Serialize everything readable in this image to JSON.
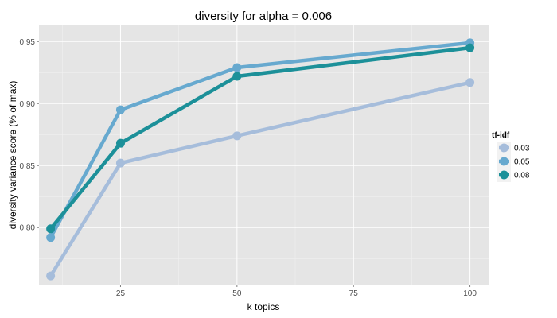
{
  "chart_data": {
    "type": "line",
    "title": "diversity for alpha = 0.006",
    "xlabel": "k topics",
    "ylabel": "diversity variance score (% of max)",
    "x": [
      10,
      25,
      50,
      100
    ],
    "xlim": [
      7.5,
      104
    ],
    "ylim": [
      0.754,
      0.963
    ],
    "xticks": [
      25,
      50,
      75,
      100
    ],
    "xtick_labels": [
      "25",
      "50",
      "75",
      "100"
    ],
    "yticks": [
      0.8,
      0.85,
      0.9,
      0.95
    ],
    "ytick_labels": [
      "0.80",
      "0.85",
      "0.90",
      "0.95"
    ],
    "grid": true,
    "legend": {
      "title": "tf-idf",
      "position": "right"
    },
    "series": [
      {
        "name": "0.03",
        "color": "#a6bddb",
        "values": [
          0.761,
          0.852,
          0.874,
          0.917
        ]
      },
      {
        "name": "0.05",
        "color": "#67a9cf",
        "values": [
          0.792,
          0.895,
          0.929,
          0.949
        ]
      },
      {
        "name": "0.08",
        "color": "#1c9099",
        "values": [
          0.799,
          0.868,
          0.922,
          0.945
        ]
      }
    ]
  }
}
